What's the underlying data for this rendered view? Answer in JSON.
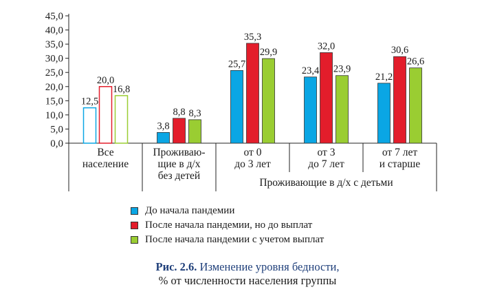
{
  "colors": {
    "blue": "#0aa6e4",
    "red": "#e31d2b",
    "green": "#9acd32"
  },
  "chart_data": {
    "type": "bar",
    "ylim": [
      0,
      45
    ],
    "yticks": [
      "0,0",
      "5,0",
      "10,0",
      "15,0",
      "20,0",
      "25,0",
      "30,0",
      "35,0",
      "40,0",
      "45,0"
    ],
    "grid": false,
    "legend_position": "bottom",
    "categories": [
      {
        "lines": [
          "Все",
          "население"
        ],
        "outline": true
      },
      {
        "lines": [
          "Проживаю-",
          "щие в д/х",
          "без детей"
        ],
        "outline": false
      },
      {
        "lines": [
          "от 0",
          "до 3 лет"
        ],
        "outline": false
      },
      {
        "lines": [
          "от 3",
          "до 7 лет"
        ],
        "outline": false
      },
      {
        "lines": [
          "от 7 лет",
          "и старше"
        ],
        "outline": false
      }
    ],
    "group_label": "Проживающие в д/х с детьми",
    "series": [
      {
        "name": "До начала пандемии",
        "color": "#0aa6e4",
        "values": [
          12.5,
          3.8,
          25.7,
          23.4,
          21.2
        ],
        "labels": [
          "12,5",
          "3,8",
          "25,7",
          "23,4",
          "21,2"
        ]
      },
      {
        "name": "После начала пандемии, но до выплат",
        "color": "#e31d2b",
        "values": [
          20.0,
          8.8,
          35.3,
          32.0,
          30.6
        ],
        "labels": [
          "20,0",
          "8,8",
          "35,3",
          "32,0",
          "30,6"
        ]
      },
      {
        "name": "После начала пандемии с учетом выплат",
        "color": "#9acd32",
        "values": [
          16.8,
          8.3,
          29.9,
          23.9,
          26.6
        ],
        "labels": [
          "16,8",
          "8,3",
          "29,9",
          "23,9",
          "26,6"
        ]
      }
    ]
  },
  "caption": {
    "prefix": "Рис. 2.6.",
    "title": "Изменение уровня бедности,",
    "subtitle": "% от численности населения группы"
  }
}
